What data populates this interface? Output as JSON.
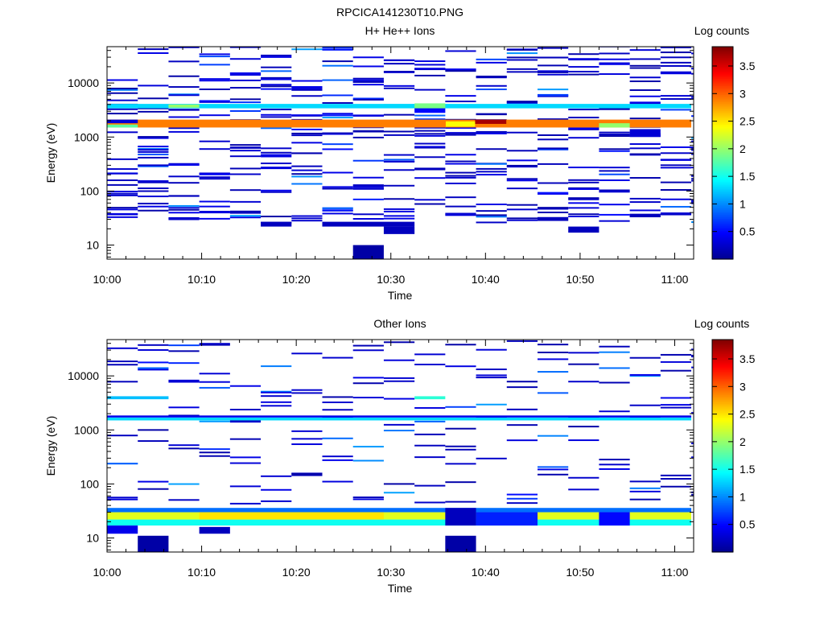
{
  "figure_title": "RPCICA141230T10.PNG",
  "colorscale": [
    "#00008f",
    "#0000ff",
    "#0080ff",
    "#00ffff",
    "#80ff80",
    "#ffff00",
    "#ff8000",
    "#ff0000",
    "#800000"
  ],
  "chart_data": [
    {
      "type": "heatmap",
      "title": "H+ He++ Ions",
      "xlabel": "Time",
      "ylabel": "Energy (eV)",
      "colorbar_label": "Log counts",
      "yscale": "log",
      "ylim": [
        5.5,
        47000
      ],
      "xlim": [
        0,
        62
      ],
      "x_ticks": [
        0,
        10,
        20,
        30,
        40,
        50,
        60
      ],
      "x_tick_labels": [
        "10:00",
        "10:10",
        "10:20",
        "10:30",
        "10:40",
        "10:50",
        "11:00"
      ],
      "y_ticks": [
        10,
        100,
        1000,
        10000
      ],
      "y_tick_labels": [
        "10",
        "100",
        "1000",
        "10000"
      ],
      "clim": [
        0,
        3.85
      ],
      "colorbar_ticks": [
        0.5,
        1,
        1.5,
        2,
        2.5,
        3,
        3.5
      ],
      "colorbar_tick_labels": [
        "0.5",
        "1",
        "1.5",
        "2",
        "2.5",
        "3",
        "3.5"
      ],
      "time_bins": [
        0,
        3.25,
        6.5,
        9.75,
        13,
        16.25,
        19.5,
        22.75,
        26,
        29.25,
        32.5,
        35.75,
        39,
        42.25,
        45.5,
        48.75,
        52,
        55.25,
        58.5,
        61.75
      ],
      "bands": [
        {
          "t": [
            0,
            61.75
          ],
          "e": [
            1500,
            2100
          ],
          "v": 2.9
        },
        {
          "t": [
            0,
            3.25
          ],
          "e": [
            1500,
            1700
          ],
          "v": 1.8
        },
        {
          "t": [
            0,
            3.25
          ],
          "e": [
            1800,
            2100
          ],
          "v": 0.3
        },
        {
          "t": [
            38.9,
            42.2
          ],
          "e": [
            1750,
            2100
          ],
          "v": 3.7
        },
        {
          "t": [
            35.8,
            38.9
          ],
          "e": [
            1550,
            1950
          ],
          "v": 2.4
        },
        {
          "t": [
            52,
            55.25
          ],
          "e": [
            1500,
            1800
          ],
          "v": 2.0
        },
        {
          "t": [
            0,
            61.75
          ],
          "e": [
            3400,
            4100
          ],
          "v": 1.3
        },
        {
          "t": [
            32.5,
            35.75
          ],
          "e": [
            3300,
            4200
          ],
          "v": 1.9
        },
        {
          "t": [
            6.5,
            9.75
          ],
          "e": [
            3500,
            4000
          ],
          "v": 2.0
        },
        {
          "t": [
            55.25,
            58.5
          ],
          "e": [
            1000,
            1400
          ],
          "v": 0.3
        },
        {
          "t": [
            26,
            29.25
          ],
          "e": [
            5.5,
            10
          ],
          "v": 0.1
        },
        {
          "t": [
            32.5,
            35.75
          ],
          "e": [
            2800,
            3400
          ],
          "v": 0.5
        }
      ],
      "speckle_seed": 11,
      "speckle_per_bin": 24,
      "speckle_bottom": 25,
      "extra_blocks": [
        {
          "t": [
            16.25,
            19.5
          ],
          "e": [
            22,
            27
          ],
          "v": 0.2
        },
        {
          "t": [
            22.75,
            32.5
          ],
          "e": [
            22,
            27
          ],
          "v": 0.2
        },
        {
          "t": [
            29.25,
            32.5
          ],
          "e": [
            16,
            22
          ],
          "v": 0.2
        },
        {
          "t": [
            45.5,
            48.75
          ],
          "e": [
            28,
            33
          ],
          "v": 0.2
        },
        {
          "t": [
            48.75,
            52
          ],
          "e": [
            17,
            22
          ],
          "v": 0.2
        },
        {
          "t": [
            55.25,
            58.5
          ],
          "e": [
            33,
            38
          ],
          "v": 0.2
        }
      ]
    },
    {
      "type": "heatmap",
      "title": "Other Ions",
      "xlabel": "Time",
      "ylabel": "Energy (eV)",
      "colorbar_label": "Log counts",
      "yscale": "log",
      "ylim": [
        5.5,
        47000
      ],
      "xlim": [
        0,
        62
      ],
      "x_ticks": [
        0,
        10,
        20,
        30,
        40,
        50,
        60
      ],
      "x_tick_labels": [
        "10:00",
        "10:10",
        "10:20",
        "10:30",
        "10:40",
        "10:50",
        "11:00"
      ],
      "y_ticks": [
        10,
        100,
        1000,
        10000
      ],
      "y_tick_labels": [
        "10",
        "100",
        "1000",
        "10000"
      ],
      "clim": [
        0,
        3.85
      ],
      "colorbar_ticks": [
        0.5,
        1,
        1.5,
        2,
        2.5,
        3,
        3.5
      ],
      "colorbar_tick_labels": [
        "0.5",
        "1",
        "1.5",
        "2",
        "2.5",
        "3",
        "3.5"
      ],
      "time_bins": [
        0,
        3.25,
        6.5,
        9.75,
        13,
        16.25,
        19.5,
        22.75,
        26,
        29.25,
        32.5,
        35.75,
        39,
        42.25,
        45.5,
        48.75,
        52,
        55.25,
        58.5,
        61.75
      ],
      "bands": [
        {
          "t": [
            0,
            61.75
          ],
          "e": [
            17,
            22
          ],
          "v": 1.5
        },
        {
          "t": [
            0,
            61.75
          ],
          "e": [
            22,
            30
          ],
          "v": 2.3
        },
        {
          "t": [
            0,
            61.75
          ],
          "e": [
            30,
            36
          ],
          "v": 0.9
        },
        {
          "t": [
            9.75,
            29.25
          ],
          "e": [
            22,
            30
          ],
          "v": 2.5
        },
        {
          "t": [
            35.75,
            39
          ],
          "e": [
            17,
            36
          ],
          "v": 0.2
        },
        {
          "t": [
            39,
            45.5
          ],
          "e": [
            17,
            30
          ],
          "v": 0.6
        },
        {
          "t": [
            52,
            55.25
          ],
          "e": [
            17,
            30
          ],
          "v": 0.5
        },
        {
          "t": [
            0,
            61.75
          ],
          "e": [
            1500,
            1700
          ],
          "v": 1.3
        },
        {
          "t": [
            0,
            61.75
          ],
          "e": [
            1700,
            1850
          ],
          "v": 0.4
        },
        {
          "t": [
            0,
            6.5
          ],
          "e": [
            3700,
            4200
          ],
          "v": 1.2
        },
        {
          "t": [
            32.5,
            35.75
          ],
          "e": [
            3700,
            4200
          ],
          "v": 1.6
        },
        {
          "t": [
            0,
            3.25
          ],
          "e": [
            12,
            17
          ],
          "v": 0.4
        },
        {
          "t": [
            3.25,
            6.5
          ],
          "e": [
            5.5,
            11
          ],
          "v": 0.1
        },
        {
          "t": [
            9.75,
            13
          ],
          "e": [
            12,
            16
          ],
          "v": 0.2
        },
        {
          "t": [
            35.75,
            39
          ],
          "e": [
            5.5,
            11
          ],
          "v": 0.1
        },
        {
          "t": [
            6.5,
            9.75
          ],
          "e": [
            7500,
            8500
          ],
          "v": 0.3
        }
      ],
      "speckle_seed": 29,
      "speckle_per_bin": 9,
      "speckle_bottom": 40,
      "extra_blocks": []
    }
  ]
}
